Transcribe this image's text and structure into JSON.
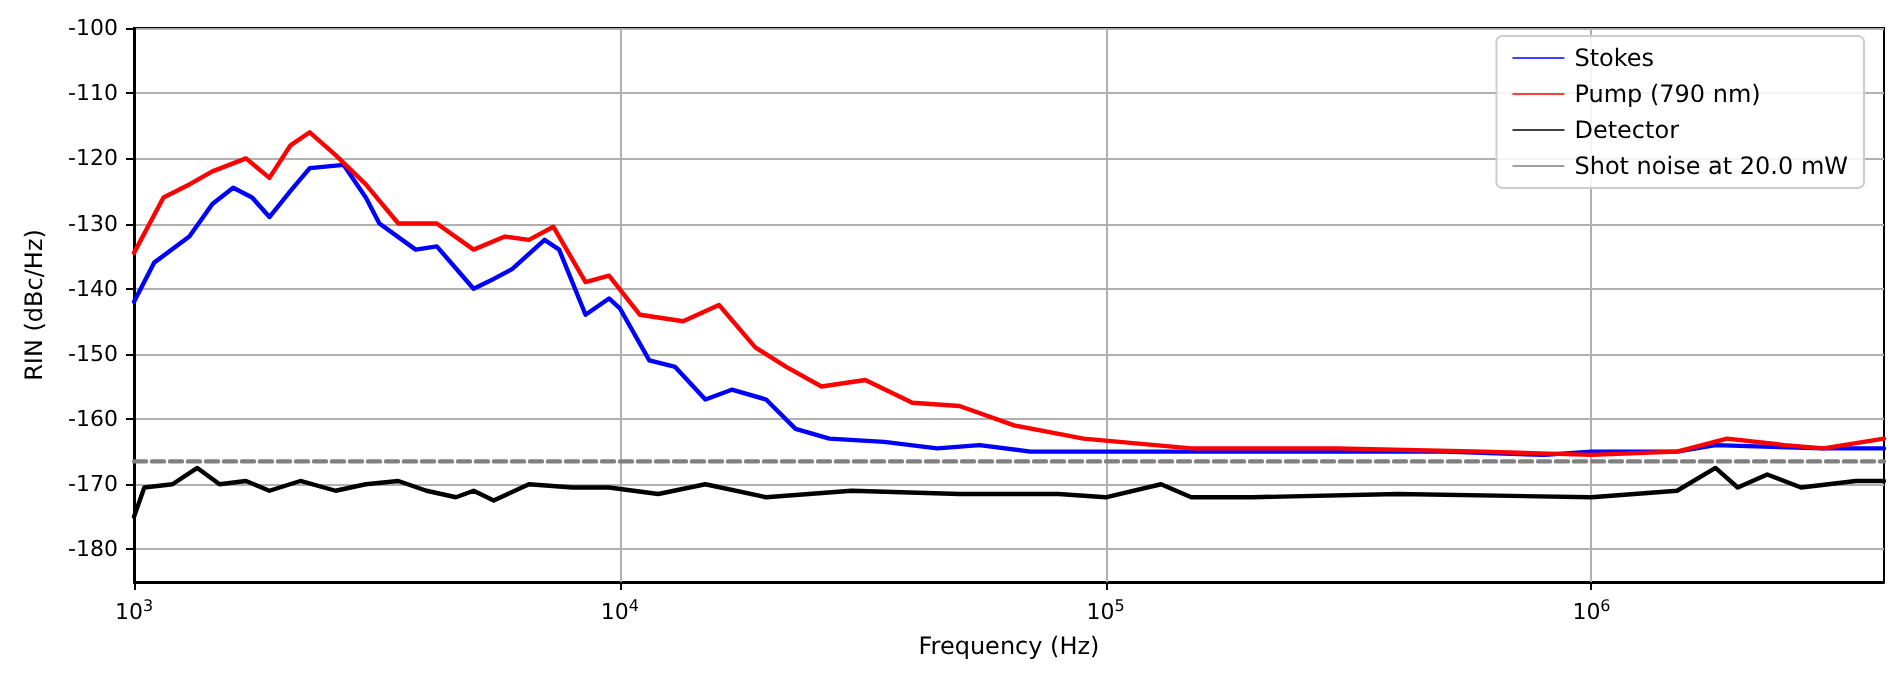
{
  "chart_data": {
    "type": "line",
    "xlabel": "Frequency (Hz)",
    "ylabel": "RIN (dBc/Hz)",
    "log": "x",
    "grid": true,
    "legend": "top right",
    "marker": "none",
    "xlim": [
      1000,
      4000000
    ],
    "ylim": [
      -185,
      -100
    ],
    "xticks": [
      {
        "value": 1000,
        "label": "10$^{3}$"
      },
      {
        "value": 10000,
        "label": "10$^{4}$"
      },
      {
        "value": 100000,
        "label": "10$^{5}$"
      },
      {
        "value": 1000000,
        "label": "10$^{6}$"
      }
    ],
    "yticks": [
      -100,
      -110,
      -120,
      -130,
      -140,
      -150,
      -160,
      -170,
      -180
    ],
    "series": [
      {
        "name": "Stokes",
        "color": "#0000ff",
        "x": [
          1000,
          1100,
          1300,
          1450,
          1600,
          1750,
          1900,
          2100,
          2300,
          2700,
          3000,
          3200,
          3800,
          4200,
          5000,
          5500,
          6000,
          7000,
          7500,
          8500,
          9500,
          10000,
          11500,
          13000,
          15000,
          17000,
          20000,
          23000,
          27000,
          35000,
          45000,
          55000,
          70000,
          100000,
          200000,
          500000,
          800000,
          1000000,
          1500000,
          1800000,
          3000000,
          4000000
        ],
        "values": [
          -142,
          -136,
          -132,
          -127,
          -124.5,
          -126,
          -129,
          -125,
          -121.5,
          -121,
          -126,
          -130,
          -134,
          -133.5,
          -140,
          -138.5,
          -137,
          -132.5,
          -134,
          -144,
          -141.5,
          -143,
          -151,
          -152,
          -157,
          -155.5,
          -157,
          -161.5,
          -163,
          -163.5,
          -164.5,
          -164,
          -165,
          -165,
          -165,
          -165,
          -165.5,
          -165,
          -165,
          -164,
          -164.5,
          -164.5
        ]
      },
      {
        "name": "Pump (790 nm)",
        "color": "#ff0000",
        "x": [
          1000,
          1150,
          1300,
          1450,
          1700,
          1900,
          2100,
          2300,
          2600,
          3000,
          3500,
          4200,
          5000,
          5800,
          6500,
          7300,
          8500,
          9500,
          11000,
          13500,
          16000,
          19000,
          22000,
          26000,
          32000,
          40000,
          50000,
          65000,
          90000,
          150000,
          300000,
          600000,
          1000000,
          1500000,
          1900000,
          2500000,
          3000000,
          4000000
        ],
        "values": [
          -134.5,
          -126,
          -124,
          -122,
          -120,
          -123,
          -118,
          -116,
          -119.5,
          -124,
          -130,
          -130,
          -134,
          -132,
          -132.5,
          -130.5,
          -139,
          -138,
          -144,
          -145,
          -142.5,
          -149,
          -152,
          -155,
          -154,
          -157.5,
          -158,
          -161,
          -163,
          -164.5,
          -164.5,
          -165,
          -165.5,
          -165,
          -163,
          -164,
          -164.5,
          -163
        ]
      },
      {
        "name": "Detector",
        "color": "#000000",
        "x": [
          1000,
          1050,
          1200,
          1350,
          1500,
          1700,
          1900,
          2200,
          2600,
          3000,
          3500,
          4000,
          4600,
          5000,
          5500,
          6500,
          8000,
          9500,
          12000,
          15000,
          20000,
          30000,
          50000,
          80000,
          100000,
          130000,
          150000,
          200000,
          400000,
          1000000,
          1500000,
          1800000,
          2000000,
          2300000,
          2700000,
          3500000,
          4000000
        ],
        "values": [
          -175,
          -170.5,
          -170,
          -167.5,
          -170,
          -169.5,
          -171,
          -169.5,
          -171,
          -170,
          -169.5,
          -171,
          -172,
          -171,
          -172.5,
          -170,
          -170.5,
          -170.5,
          -171.5,
          -170,
          -172,
          -171,
          -171.5,
          -171.5,
          -172,
          -170,
          -172,
          -172,
          -171.5,
          -172,
          -171,
          -167.5,
          -170.5,
          -168.5,
          -170.5,
          -169.5,
          -169.5
        ]
      },
      {
        "name": "Shot noise at 20.0 mW",
        "color": "#808080",
        "line_style": "dashed",
        "x": [
          1000,
          4000000
        ],
        "values": [
          -166.5,
          -166.5
        ]
      }
    ]
  }
}
